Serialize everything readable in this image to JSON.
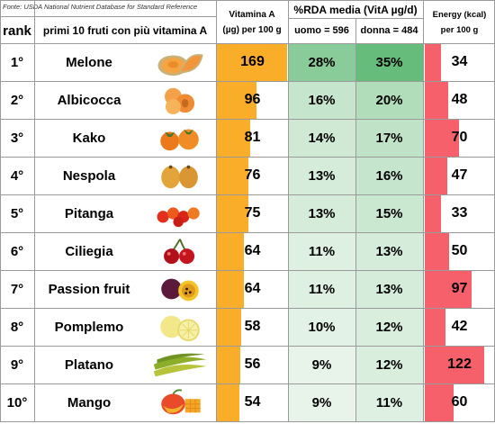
{
  "header": {
    "source": "Fonte: USDA National Nutrient Database for Standard Reference",
    "rank": "rank",
    "fruit_title": "primi 10 fruti con più vitamina A",
    "vita_line1": "Vitamina A",
    "vita_line2": "(µg) per 100 g",
    "rda_title": "%RDA media (VitA µg/d)",
    "rda_male": "uomo = 596",
    "rda_female": "donna = 484",
    "energy_line1": "Energy (kcal)",
    "energy_line2": "per 100 g"
  },
  "colors": {
    "vitamin_bar": "#f9ad29",
    "energy_bar": "#f6606a",
    "rda_low": "#e8f4ea",
    "rda_high": "#66bd7b"
  },
  "chart_data": {
    "type": "table",
    "columns": [
      "rank",
      "primi 10 fruti con più vitamina A",
      "Vitamina A (µg) per 100 g",
      "uomo = 596",
      "donna = 484",
      "Energy (kcal) per 100 g"
    ],
    "rows": [
      {
        "rank": "1°",
        "name": "Melone",
        "fruit_icon": "cantaloupe-icon",
        "vitamin_a": 169,
        "rda_male": "28%",
        "rda_female": "35%",
        "energy": 34
      },
      {
        "rank": "2°",
        "name": "Albicocca",
        "fruit_icon": "apricot-icon",
        "vitamin_a": 96,
        "rda_male": "16%",
        "rda_female": "20%",
        "energy": 48
      },
      {
        "rank": "3°",
        "name": "Kako",
        "fruit_icon": "persimmon-icon",
        "vitamin_a": 81,
        "rda_male": "14%",
        "rda_female": "17%",
        "energy": 70
      },
      {
        "rank": "4°",
        "name": "Nespola",
        "fruit_icon": "loquat-icon",
        "vitamin_a": 76,
        "rda_male": "13%",
        "rda_female": "16%",
        "energy": 47
      },
      {
        "rank": "5°",
        "name": "Pitanga",
        "fruit_icon": "pitanga-icon",
        "vitamin_a": 75,
        "rda_male": "13%",
        "rda_female": "15%",
        "energy": 33
      },
      {
        "rank": "6°",
        "name": "Ciliegia",
        "fruit_icon": "cherry-icon",
        "vitamin_a": 64,
        "rda_male": "11%",
        "rda_female": "13%",
        "energy": 50
      },
      {
        "rank": "7°",
        "name": "Passion fruit",
        "fruit_icon": "passion-fruit-icon",
        "vitamin_a": 64,
        "rda_male": "11%",
        "rda_female": "13%",
        "energy": 97
      },
      {
        "rank": "8°",
        "name": "Pomplemo",
        "fruit_icon": "grapefruit-icon",
        "vitamin_a": 58,
        "rda_male": "10%",
        "rda_female": "12%",
        "energy": 42
      },
      {
        "rank": "9°",
        "name": "Platano",
        "fruit_icon": "plantain-icon",
        "vitamin_a": 56,
        "rda_male": "9%",
        "rda_female": "12%",
        "energy": 122
      },
      {
        "rank": "10°",
        "name": "Mango",
        "fruit_icon": "mango-icon",
        "vitamin_a": 54,
        "rda_male": "9%",
        "rda_female": "11%",
        "energy": 60
      }
    ],
    "vitamin_a_max": 169,
    "energy_max": 122
  }
}
